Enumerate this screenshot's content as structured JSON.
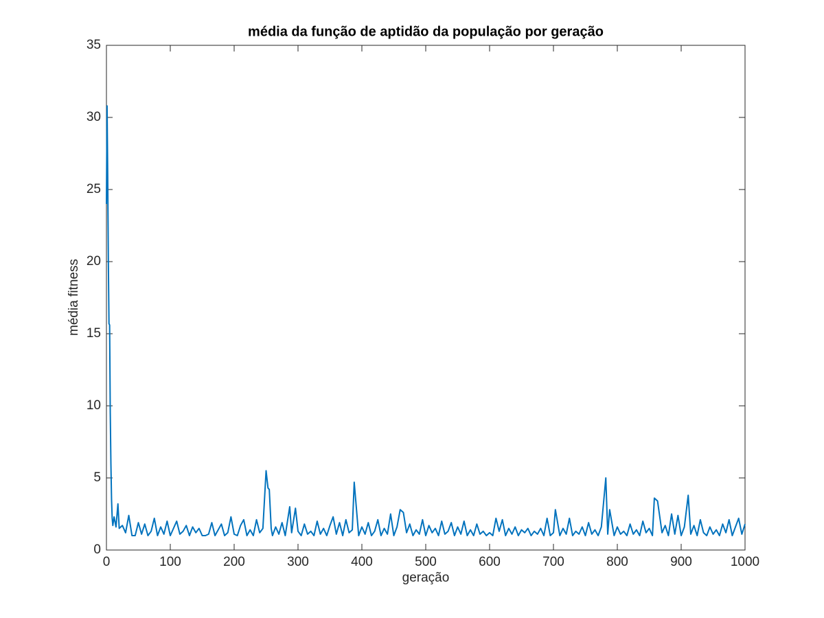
{
  "chart_data": {
    "type": "line",
    "title": "média da função de aptidão da população por geração",
    "x_label": "geração",
    "y_label": "média fitness",
    "color": "#0072bd",
    "xlim": [
      0,
      1000
    ],
    "ylim": [
      0,
      35
    ],
    "xticks": [
      0,
      100,
      200,
      300,
      400,
      500,
      600,
      700,
      800,
      900,
      1000
    ],
    "yticks": [
      0,
      5,
      10,
      15,
      20,
      25,
      30,
      35
    ],
    "grid": false,
    "x": [
      0,
      1,
      2,
      3,
      4,
      5,
      6,
      7,
      8,
      9,
      10,
      12,
      15,
      18,
      20,
      25,
      30,
      35,
      40,
      45,
      50,
      55,
      60,
      65,
      70,
      75,
      80,
      85,
      90,
      95,
      100,
      105,
      110,
      115,
      120,
      125,
      130,
      135,
      140,
      145,
      150,
      155,
      160,
      165,
      170,
      175,
      180,
      185,
      190,
      195,
      200,
      205,
      210,
      215,
      220,
      225,
      230,
      235,
      240,
      245,
      250,
      253,
      255,
      258,
      260,
      265,
      270,
      275,
      280,
      287,
      290,
      296,
      300,
      305,
      310,
      315,
      320,
      325,
      330,
      335,
      340,
      345,
      350,
      355,
      360,
      365,
      370,
      375,
      380,
      385,
      388,
      395,
      400,
      405,
      410,
      415,
      420,
      425,
      430,
      435,
      440,
      445,
      450,
      455,
      460,
      465,
      470,
      475,
      480,
      485,
      490,
      495,
      500,
      505,
      510,
      515,
      520,
      525,
      530,
      535,
      540,
      545,
      550,
      555,
      560,
      565,
      570,
      575,
      580,
      585,
      590,
      595,
      600,
      605,
      610,
      615,
      620,
      625,
      630,
      635,
      640,
      645,
      650,
      655,
      660,
      665,
      670,
      675,
      680,
      685,
      690,
      695,
      700,
      703,
      710,
      715,
      720,
      725,
      730,
      735,
      740,
      745,
      750,
      755,
      760,
      765,
      770,
      775,
      782,
      785,
      788,
      795,
      800,
      805,
      810,
      815,
      820,
      825,
      830,
      835,
      840,
      845,
      850,
      855,
      858,
      863,
      870,
      875,
      880,
      885,
      890,
      895,
      900,
      905,
      911,
      915,
      920,
      925,
      930,
      935,
      940,
      945,
      950,
      955,
      960,
      965,
      970,
      975,
      980,
      985,
      990,
      995,
      1000
    ],
    "values": [
      24,
      30.8,
      26,
      20,
      15.7,
      15.6,
      9.5,
      6,
      3.5,
      2.2,
      1.7,
      2.3,
      1.6,
      3.2,
      1.5,
      1.7,
      1.2,
      2.4,
      1.0,
      1.0,
      1.9,
      1.1,
      1.8,
      1.0,
      1.3,
      2.2,
      1.0,
      1.6,
      1.1,
      2.0,
      1.0,
      1.5,
      2.0,
      1.1,
      1.3,
      1.7,
      1.0,
      1.6,
      1.2,
      1.5,
      1.0,
      1.0,
      1.1,
      1.9,
      1.0,
      1.4,
      1.8,
      1.0,
      1.2,
      2.3,
      1.1,
      1.0,
      1.7,
      2.1,
      1.0,
      1.4,
      1.0,
      2.1,
      1.2,
      1.5,
      5.5,
      4.3,
      4.2,
      1.5,
      1.0,
      1.6,
      1.1,
      1.9,
      1.0,
      3.0,
      1.2,
      2.9,
      1.3,
      1.0,
      1.8,
      1.1,
      1.3,
      1.0,
      2.0,
      1.1,
      1.5,
      1.0,
      1.7,
      2.3,
      1.1,
      1.9,
      1.0,
      2.1,
      1.2,
      1.4,
      4.7,
      1.0,
      1.6,
      1.1,
      1.9,
      1.0,
      1.3,
      2.1,
      1.0,
      1.5,
      1.1,
      2.5,
      1.0,
      1.6,
      2.8,
      2.6,
      1.2,
      1.8,
      1.0,
      1.4,
      1.1,
      2.1,
      1.0,
      1.7,
      1.2,
      1.5,
      1.0,
      2.0,
      1.1,
      1.3,
      1.9,
      1.0,
      1.6,
      1.1,
      2.0,
      1.0,
      1.4,
      1.0,
      1.8,
      1.1,
      1.3,
      1.0,
      1.2,
      1.0,
      2.2,
      1.3,
      2.1,
      1.0,
      1.5,
      1.1,
      1.6,
      1.0,
      1.4,
      1.2,
      1.5,
      1.0,
      1.3,
      1.1,
      1.5,
      1.0,
      2.2,
      1.0,
      1.2,
      2.8,
      1.0,
      1.5,
      1.1,
      2.2,
      1.0,
      1.3,
      1.1,
      1.6,
      1.0,
      1.9,
      1.1,
      1.4,
      1.0,
      1.6,
      5.0,
      1.1,
      2.8,
      1.0,
      1.6,
      1.1,
      1.3,
      1.0,
      1.8,
      1.1,
      1.4,
      1.0,
      2.0,
      1.2,
      1.5,
      1.0,
      3.6,
      3.4,
      1.2,
      1.7,
      1.0,
      2.5,
      1.1,
      2.4,
      1.0,
      1.6,
      3.8,
      1.1,
      1.7,
      1.0,
      2.1,
      1.2,
      1.0,
      1.6,
      1.1,
      1.4,
      1.0,
      1.8,
      1.2,
      2.1,
      1.0,
      1.6,
      2.2,
      1.1,
      1.8
    ]
  }
}
